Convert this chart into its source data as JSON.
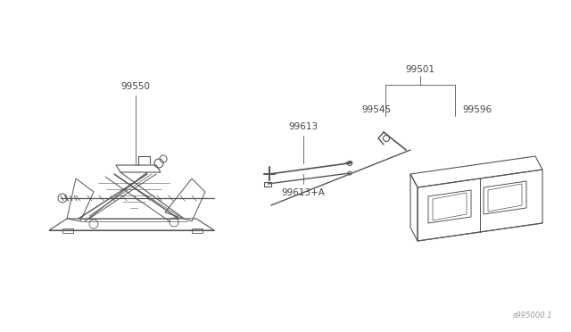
{
  "background_color": "#ffffff",
  "figure_width": 6.4,
  "figure_height": 3.72,
  "dpi": 100,
  "diagram_ref": "s995000.1",
  "line_color": "#555555",
  "text_color": "#444444",
  "font_size": 7.5,
  "label_99550": "99550",
  "label_99613": "99613",
  "label_99613A": "99613+A",
  "label_99501": "99501",
  "label_99545": "99545",
  "label_99596": "99596"
}
